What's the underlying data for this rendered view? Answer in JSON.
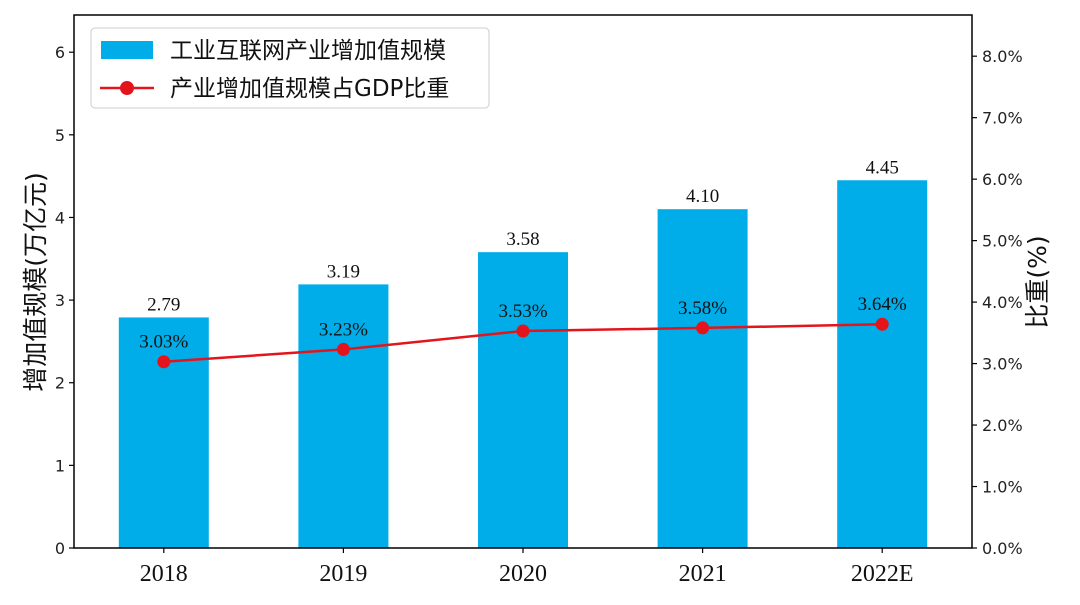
{
  "chart_data": {
    "type": "bar",
    "categories": [
      "2018",
      "2019",
      "2020",
      "2021",
      "2022E"
    ],
    "series": [
      {
        "name": "工业互联网产业增加值规模",
        "type": "bar",
        "axis": "left",
        "values": [
          2.79,
          3.19,
          3.58,
          4.1,
          4.45
        ],
        "labels": [
          "2.79",
          "3.19",
          "3.58",
          "4.10",
          "4.45"
        ],
        "color": "#00ade9"
      },
      {
        "name": "产业增加值规模占GDP比重",
        "type": "line",
        "axis": "right",
        "values": [
          3.03,
          3.23,
          3.53,
          3.58,
          3.64
        ],
        "labels": [
          "3.03%",
          "3.23%",
          "3.53%",
          "3.58%",
          "3.64%"
        ],
        "color": "#e3141b"
      }
    ],
    "ylabel": "增加值规模(万亿元)",
    "y2label": "比重(%)",
    "ylim": [
      0,
      6.45
    ],
    "y2lim": [
      0,
      8.67
    ],
    "yticks": [
      "0",
      "1",
      "2",
      "3",
      "4",
      "5",
      "6"
    ],
    "y2ticks": [
      "0.0%",
      "1.0%",
      "2.0%",
      "3.0%",
      "4.0%",
      "5.0%",
      "6.0%",
      "7.0%",
      "8.0%"
    ],
    "grid": false,
    "legend": "top-left"
  }
}
